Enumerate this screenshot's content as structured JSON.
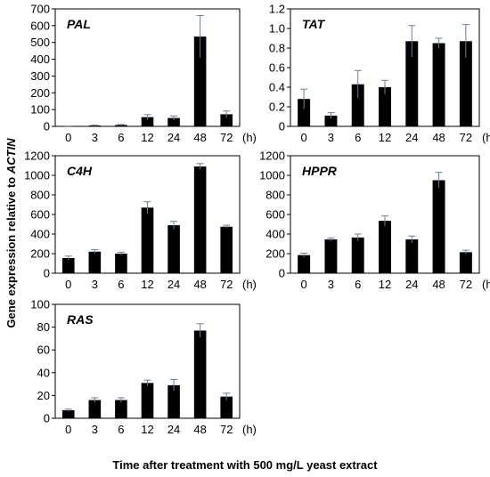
{
  "figure": {
    "ylabel_prefix": "Gene expression relative to ",
    "ylabel_gene": "ACTIN",
    "xlabel": "Time after treatment with 500 mg/L yeast extract",
    "x_unit": "(h)"
  },
  "chart_data": [
    {
      "type": "bar",
      "title": "PAL",
      "categories": [
        "0",
        "3",
        "6",
        "12",
        "24",
        "48",
        "72"
      ],
      "values": [
        1,
        5,
        8,
        55,
        50,
        535,
        72
      ],
      "errors": [
        0.5,
        2,
        3,
        15,
        12,
        125,
        20
      ],
      "ylim": [
        0,
        700
      ],
      "yticks": [
        "0",
        "100",
        "200",
        "300",
        "400",
        "500",
        "600",
        "700"
      ],
      "bar_color": "#000000",
      "error_color": "#6b7f99"
    },
    {
      "type": "bar",
      "title": "TAT",
      "categories": [
        "0",
        "3",
        "6",
        "12",
        "24",
        "48",
        "72"
      ],
      "values": [
        0.28,
        0.11,
        0.43,
        0.4,
        0.87,
        0.85,
        0.87
      ],
      "errors": [
        0.1,
        0.03,
        0.14,
        0.07,
        0.16,
        0.05,
        0.17
      ],
      "ylim": [
        0,
        1.2
      ],
      "yticks": [
        "0",
        "0.2",
        "0.4",
        "0.6",
        "0.8",
        "1.0",
        "1.2"
      ],
      "bar_color": "#000000",
      "error_color": "#6b7f99"
    },
    {
      "type": "bar",
      "title": "C4H",
      "categories": [
        "0",
        "3",
        "6",
        "12",
        "24",
        "48",
        "72"
      ],
      "values": [
        155,
        220,
        200,
        670,
        490,
        1090,
        475
      ],
      "errors": [
        20,
        20,
        15,
        60,
        40,
        30,
        15
      ],
      "ylim": [
        0,
        1200
      ],
      "yticks": [
        "0",
        "200",
        "400",
        "600",
        "800",
        "1000",
        "1200"
      ],
      "bar_color": "#000000",
      "error_color": "#6b7f99"
    },
    {
      "type": "bar",
      "title": "HPPR",
      "categories": [
        "0",
        "3",
        "6",
        "12",
        "24",
        "48",
        "72"
      ],
      "values": [
        185,
        345,
        365,
        535,
        345,
        950,
        215
      ],
      "errors": [
        20,
        15,
        35,
        50,
        35,
        80,
        20
      ],
      "ylim": [
        0,
        1200
      ],
      "yticks": [
        "0",
        "200",
        "400",
        "600",
        "800",
        "1000",
        "1200"
      ],
      "bar_color": "#000000",
      "error_color": "#6b7f99"
    },
    {
      "type": "bar",
      "title": "RAS",
      "categories": [
        "0",
        "3",
        "6",
        "12",
        "24",
        "48",
        "72"
      ],
      "values": [
        7,
        16,
        16,
        31,
        29,
        77,
        19
      ],
      "errors": [
        1,
        2,
        2,
        2.5,
        5,
        6,
        3
      ],
      "ylim": [
        0,
        100
      ],
      "yticks": [
        "0",
        "20",
        "40",
        "60",
        "80",
        "100"
      ],
      "bar_color": "#000000",
      "error_color": "#6b7f99"
    }
  ]
}
